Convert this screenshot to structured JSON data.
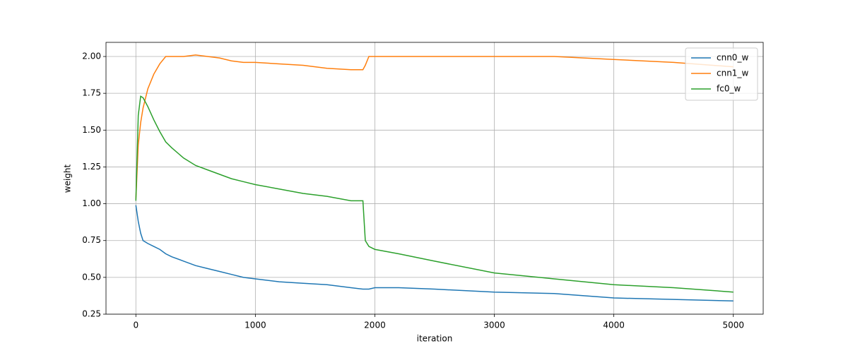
{
  "chart_data": {
    "type": "line",
    "x_label": "iteration",
    "y_label": "weight",
    "x": [
      0,
      20,
      40,
      60,
      100,
      150,
      200,
      250,
      300,
      400,
      500,
      600,
      700,
      800,
      900,
      1000,
      1200,
      1400,
      1600,
      1800,
      1900,
      1920,
      1950,
      2000,
      2200,
      2500,
      3000,
      3500,
      4000,
      4500,
      5000
    ],
    "series": [
      {
        "name": "cnn0_w",
        "color": "#1f77b4",
        "values": [
          0.99,
          0.88,
          0.8,
          0.75,
          0.73,
          0.71,
          0.69,
          0.66,
          0.64,
          0.61,
          0.58,
          0.56,
          0.54,
          0.52,
          0.5,
          0.49,
          0.47,
          0.46,
          0.45,
          0.43,
          0.42,
          0.42,
          0.42,
          0.43,
          0.43,
          0.42,
          0.4,
          0.39,
          0.36,
          0.35,
          0.34
        ]
      },
      {
        "name": "cnn1_w",
        "color": "#ff7f0e",
        "values": [
          1.03,
          1.4,
          1.55,
          1.65,
          1.78,
          1.88,
          1.95,
          2.0,
          2.0,
          2.0,
          2.01,
          2.0,
          1.99,
          1.97,
          1.96,
          1.96,
          1.95,
          1.94,
          1.92,
          1.91,
          1.91,
          1.94,
          2.0,
          2.0,
          2.0,
          2.0,
          2.0,
          2.0,
          1.98,
          1.96,
          1.93
        ]
      },
      {
        "name": "fc0_w",
        "color": "#2ca02c",
        "values": [
          1.02,
          1.6,
          1.73,
          1.72,
          1.66,
          1.57,
          1.49,
          1.42,
          1.38,
          1.31,
          1.26,
          1.23,
          1.2,
          1.17,
          1.15,
          1.13,
          1.1,
          1.07,
          1.05,
          1.02,
          1.02,
          0.75,
          0.71,
          0.69,
          0.66,
          0.61,
          0.53,
          0.49,
          0.45,
          0.43,
          0.4
        ]
      }
    ],
    "xlim": [
      -250,
      5250
    ],
    "ylim": [
      0.25,
      2.096
    ],
    "xticks": [
      0,
      1000,
      2000,
      3000,
      4000,
      5000
    ],
    "yticks": [
      0.25,
      {
        "value": 0.5,
        "label": "0.50"
      },
      0.75,
      {
        "value": 1.0,
        "label": "1.00"
      },
      1.25,
      {
        "value": 1.5,
        "label": "1.50"
      },
      1.75,
      {
        "value": 2.0,
        "label": "2.00"
      }
    ],
    "grid": true,
    "legend": "upper right"
  }
}
